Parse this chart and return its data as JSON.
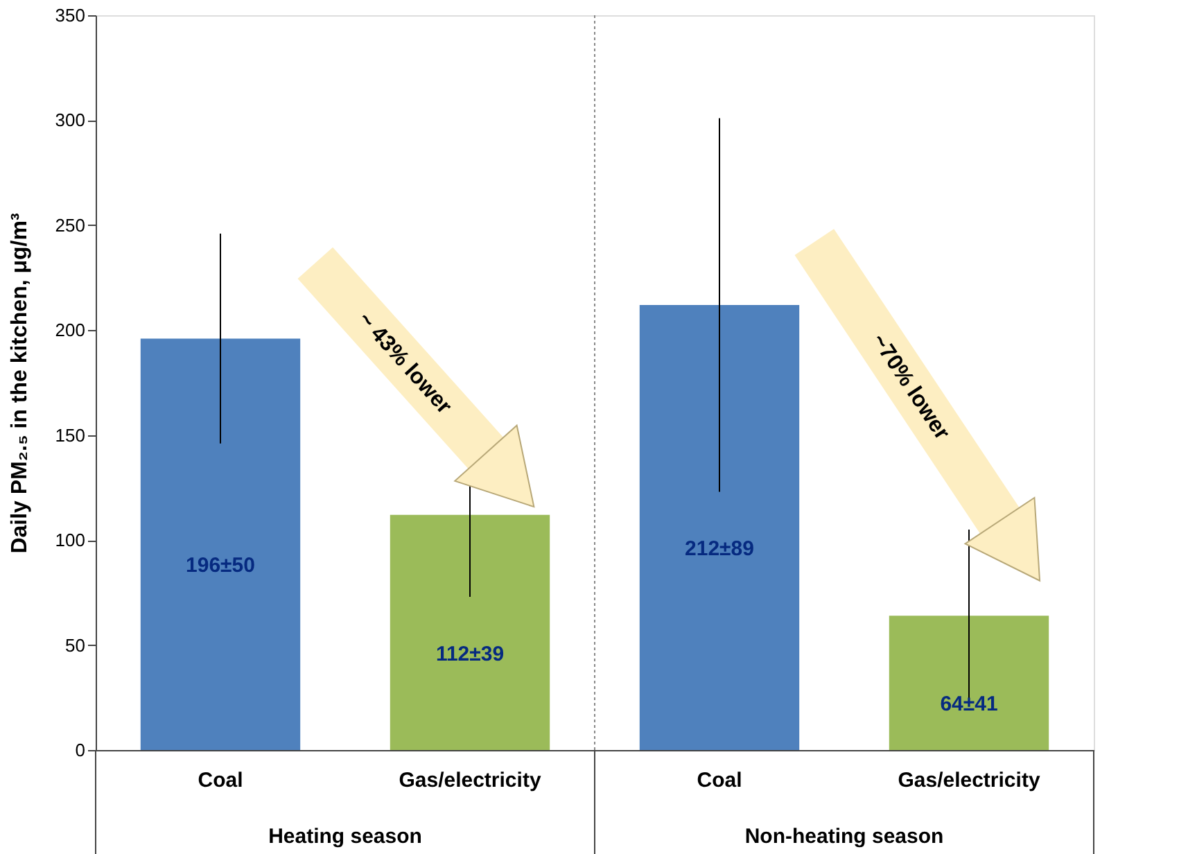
{
  "chart_data": {
    "type": "bar",
    "categories": [
      "Coal",
      "Gas/electricity",
      "Coal",
      "Gas/electricity"
    ],
    "values": [
      196,
      112,
      212,
      64
    ],
    "errors": [
      50,
      39,
      89,
      41
    ],
    "colors": [
      "#4f81bd",
      "#9bbb59",
      "#4f81bd",
      "#9bbb59"
    ],
    "value_labels": [
      "196±50",
      "112±39",
      "212±89",
      "64±41"
    ],
    "ylabel": "Daily PM₂.₅ in the kitchen, μg/m³",
    "ylim": [
      0,
      350
    ],
    "yticks": [
      0,
      50,
      100,
      150,
      200,
      250,
      300,
      350
    ],
    "annotations": [
      "~ 43% lower",
      "~70% lower",
      "Heating season",
      "Non-heating season"
    ],
    "grid": false
  }
}
